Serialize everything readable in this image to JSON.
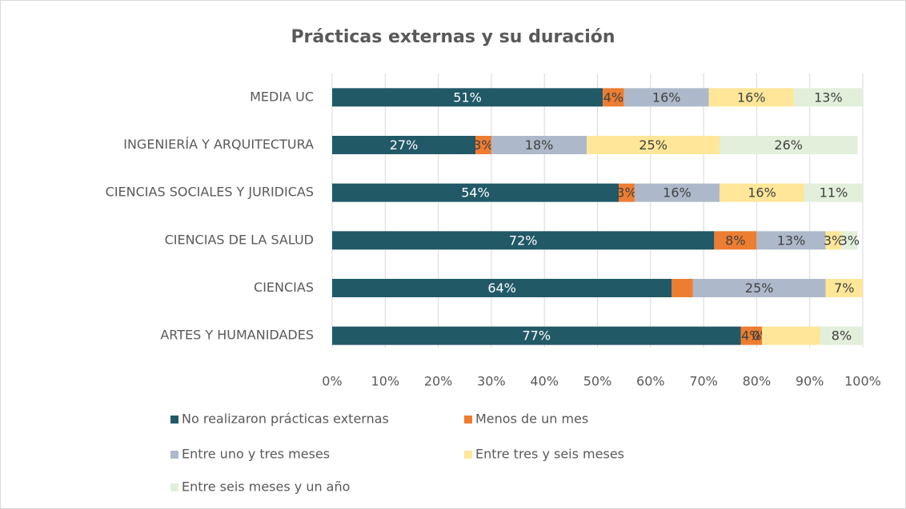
{
  "chart_data": {
    "type": "stacked-bar-horizontal",
    "title": "Prácticas externas y su duración",
    "categories": [
      "MEDIA UC",
      "INGENIERÍA Y ARQUITECTURA",
      "CIENCIAS SOCIALES Y JURIDICAS",
      "CIENCIAS DE LA SALUD",
      "CIENCIAS",
      "ARTES Y HUMANIDADES"
    ],
    "series": [
      {
        "name": "No realizaron prácticas externas",
        "color": "#215967",
        "values": [
          51,
          27,
          54,
          72,
          64,
          77
        ],
        "value_labels": [
          "51%",
          "27%",
          "54%",
          "72%",
          "64%",
          "77%"
        ]
      },
      {
        "name": "Menos de un mes",
        "color": "#ed7d31",
        "values": [
          4,
          3,
          3,
          8,
          4,
          4
        ],
        "value_labels": [
          "4%",
          "3%",
          "3%",
          "8%",
          null,
          "4%"
        ]
      },
      {
        "name": "Entre uno y tres meses",
        "color": "#adb9ca",
        "values": [
          16,
          18,
          16,
          13,
          25,
          0
        ],
        "value_labels": [
          "16%",
          "18%",
          "16%",
          "13%",
          "25%",
          "0%"
        ]
      },
      {
        "name": "Entre tres y seis meses",
        "color": "#ffe699",
        "values": [
          16,
          25,
          16,
          3,
          7,
          11
        ],
        "value_labels": [
          "16%",
          "25%",
          "16%",
          "3%",
          "7%",
          null
        ]
      },
      {
        "name": "Entre seis meses y un año",
        "color": "#e2efda",
        "values": [
          13,
          26,
          11,
          3,
          0,
          8
        ],
        "value_labels": [
          "13%",
          "26%",
          "11%",
          "3%",
          null,
          "8%"
        ]
      }
    ],
    "xlim": [
      0,
      100
    ],
    "xticks": [
      {
        "value": 0,
        "label": "0%"
      },
      {
        "value": 10,
        "label": "10%"
      },
      {
        "value": 20,
        "label": "20%"
      },
      {
        "value": 30,
        "label": "30%"
      },
      {
        "value": 40,
        "label": "40%"
      },
      {
        "value": 50,
        "label": "50%"
      },
      {
        "value": 60,
        "label": "60%"
      },
      {
        "value": 70,
        "label": "70%"
      },
      {
        "value": 80,
        "label": "80%"
      },
      {
        "value": 90,
        "label": "90%"
      },
      {
        "value": 100,
        "label": "100%"
      }
    ],
    "grid": true,
    "legend": "bottom"
  }
}
